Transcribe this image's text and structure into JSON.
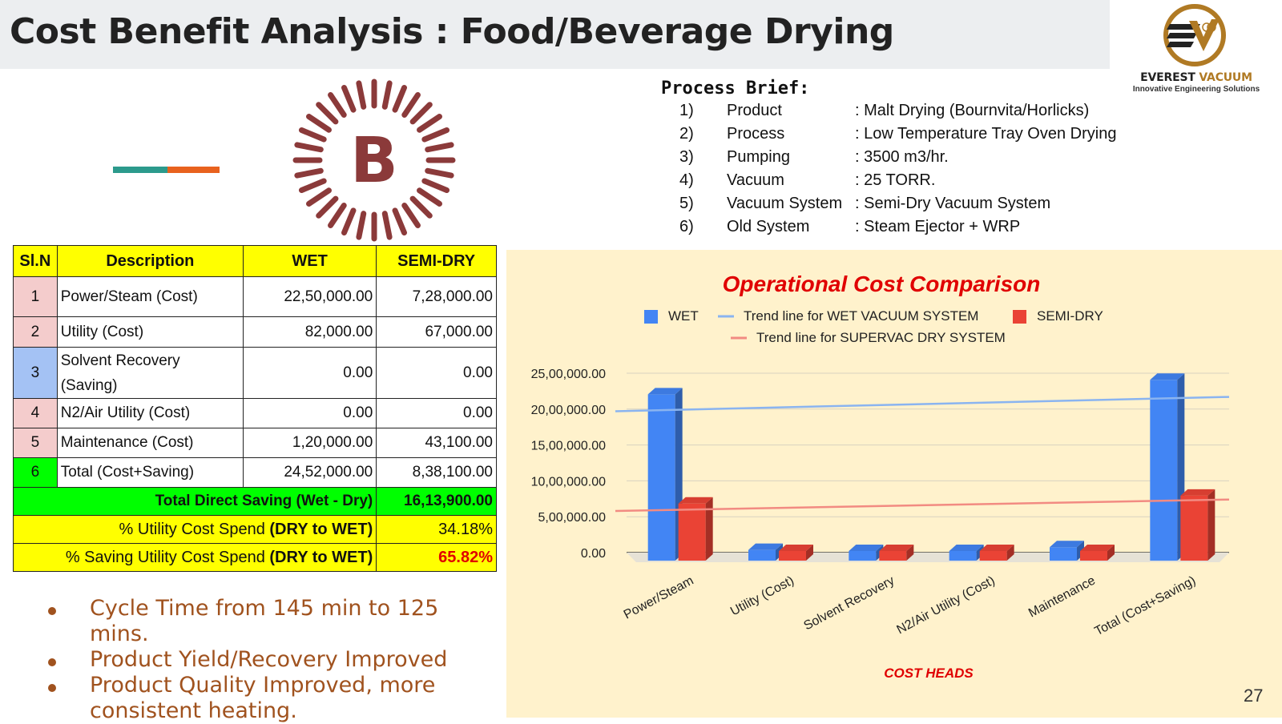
{
  "header": {
    "title": "Cost Benefit Analysis : Food/Beverage Drying"
  },
  "logo": {
    "icon": "everest-vacuum-logo-icon",
    "name_part1": "EVEREST",
    "name_part2": "VACUUM",
    "tagline": "Innovative Engineering Solutions",
    "accent_color": "#b07a24"
  },
  "badge": {
    "letter": "B",
    "color": "#8b3a3a"
  },
  "process_brief": {
    "title": "Process Brief:",
    "items": [
      {
        "num": "1)",
        "label": "Product",
        "value": ": Malt Drying (Bournvita/Horlicks)"
      },
      {
        "num": "2)",
        "label": "Process",
        "value": ": Low Temperature Tray Oven Drying"
      },
      {
        "num": "3)",
        "label": "Pumping",
        "value": ": 3500 m3/hr."
      },
      {
        "num": "4)",
        "label": "Vacuum",
        "value": ": 25 TORR."
      },
      {
        "num": "5)",
        "label": "Vacuum System",
        "value": ": Semi-Dry Vacuum System"
      },
      {
        "num": "6)",
        "label": "Old System",
        "value": ": Steam Ejector + WRP"
      }
    ]
  },
  "table": {
    "headers": [
      "Sl.N",
      "Description",
      "WET",
      "SEMI-DRY"
    ],
    "rows": [
      {
        "sl": "1",
        "desc": "Power/Steam (Cost)",
        "wet": "22,50,000.00",
        "dry": "7,28,000.00"
      },
      {
        "sl": "2",
        "desc": "Utility (Cost)",
        "wet": "82,000.00",
        "dry": "67,000.00"
      },
      {
        "sl": "3",
        "desc": "Solvent Recovery (Saving)",
        "wet": "0.00",
        "dry": "0.00"
      },
      {
        "sl": "4",
        "desc": "N2/Air Utility (Cost)",
        "wet": "0.00",
        "dry": "0.00"
      },
      {
        "sl": "5",
        "desc": "Maintenance (Cost)",
        "wet": "1,20,000.00",
        "dry": "43,100.00"
      },
      {
        "sl": "6",
        "desc": "Total (Cost+Saving)",
        "wet": "24,52,000.00",
        "dry": "8,38,100.00"
      }
    ],
    "total_saving": {
      "label": "Total Direct Saving (Wet - Dry)",
      "value": "16,13,900.00"
    },
    "utility_spend": {
      "label": "% Utility Cost Spend ",
      "label_bold": "(DRY to WET)",
      "value": "34.18%"
    },
    "saving_spend": {
      "label": "% Saving Utility Cost Spend ",
      "label_bold": "(DRY to WET)",
      "value": "65.82%"
    }
  },
  "bullets": [
    "Cycle Time from 145 min to 125 mins.",
    "Product Yield/Recovery Improved",
    "Product Quality Improved, more consistent heating."
  ],
  "chart_data": {
    "type": "bar",
    "title": "Operational Cost Comparison",
    "xlabel": "COST HEADS",
    "ylabel": "",
    "categories": [
      "Power/Steam",
      "Utility (Cost)",
      "Solvent Recovery",
      "N2/Air Utility (Cost)",
      "Maintenance",
      "Total (Cost+Saving)"
    ],
    "series": [
      {
        "name": "WET",
        "values": [
          2250000,
          82000,
          0,
          0,
          120000,
          2452000
        ],
        "color": "#4285f4"
      },
      {
        "name": "SEMI-DRY",
        "values": [
          728000,
          67000,
          0,
          0,
          43100,
          838100
        ],
        "color": "#ea4335"
      }
    ],
    "trendlines": [
      {
        "name": "Trend line for WET VACUUM SYSTEM",
        "start": 1970000,
        "end": 2170000,
        "color": "#8ab4f0"
      },
      {
        "name": "Trend line for SUPERVAC DRY SYSTEM",
        "start": 580000,
        "end": 740000,
        "color": "#f28b82"
      }
    ],
    "yticks": [
      "0.00",
      "5,00,000.00",
      "10,00,000.00",
      "15,00,000.00",
      "20,00,000.00",
      "25,00,000.00"
    ],
    "ylim": [
      0,
      2500000
    ],
    "grid": true,
    "legend_position": "top",
    "style": "3d"
  },
  "footer": {
    "page_number": "27"
  }
}
